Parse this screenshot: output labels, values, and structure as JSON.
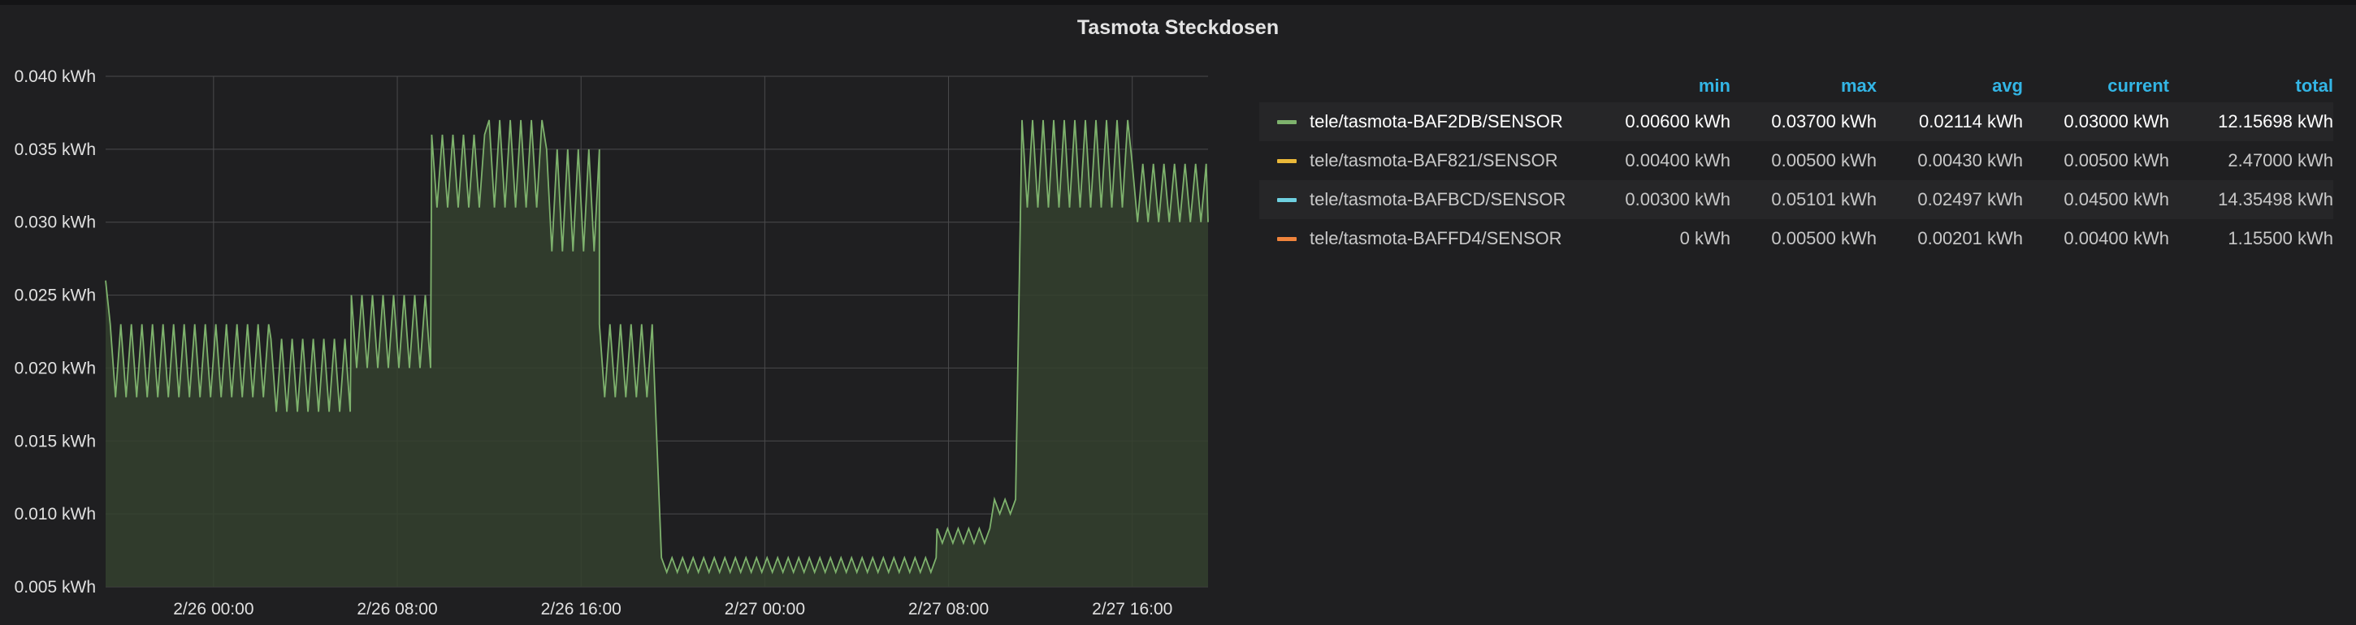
{
  "panel": {
    "title": "Tasmota Steckdosen"
  },
  "colors": {
    "background": "#1f1f21",
    "grid": "#4a4a4c",
    "series_line": "#7eb26d",
    "series_fill": "#34412e",
    "legend_header": "#33b5e5"
  },
  "legend": {
    "columns": [
      "min",
      "max",
      "avg",
      "current",
      "total"
    ],
    "rows": [
      {
        "name": "tele/tasmota-BAF2DB/SENSOR",
        "color": "#7eb26d",
        "min": "0.00600 kWh",
        "max": "0.03700 kWh",
        "avg": "0.02114 kWh",
        "current": "0.03000 kWh",
        "total": "12.15698 kWh"
      },
      {
        "name": "tele/tasmota-BAF821/SENSOR",
        "color": "#eab839",
        "min": "0.00400 kWh",
        "max": "0.00500 kWh",
        "avg": "0.00430 kWh",
        "current": "0.00500 kWh",
        "total": "2.47000 kWh"
      },
      {
        "name": "tele/tasmota-BAFBCD/SENSOR",
        "color": "#6ed0e0",
        "min": "0.00300 kWh",
        "max": "0.05101 kWh",
        "avg": "0.02497 kWh",
        "current": "0.04500 kWh",
        "total": "14.35498 kWh"
      },
      {
        "name": "tele/tasmota-BAFFD4/SENSOR",
        "color": "#ef843c",
        "min": "0 kWh",
        "max": "0.00500 kWh",
        "avg": "0.00201 kWh",
        "current": "0.00400 kWh",
        "total": "1.15500 kWh"
      }
    ]
  },
  "chart_data": {
    "type": "area",
    "title": "Tasmota Steckdosen",
    "xlabel": "",
    "ylabel": "",
    "unit": "kWh",
    "ylim": [
      0.005,
      0.04
    ],
    "xlim_hours": [
      -4.7,
      43.3
    ],
    "yticks": [
      "0.040 kWh",
      "0.035 kWh",
      "0.030 kWh",
      "0.025 kWh",
      "0.020 kWh",
      "0.015 kWh",
      "0.010 kWh",
      "0.005 kWh"
    ],
    "ytick_values": [
      0.04,
      0.035,
      0.03,
      0.025,
      0.02,
      0.015,
      0.01,
      0.005
    ],
    "xticks": [
      "2/26 00:00",
      "2/26 08:00",
      "2/26 16:00",
      "2/27 00:00",
      "2/27 08:00",
      "2/27 16:00"
    ],
    "xtick_hours": [
      0,
      8,
      16,
      24,
      32,
      40
    ],
    "grid": true,
    "series": [
      {
        "name": "tele/tasmota-BAF2DB/SENSOR",
        "segments": [
          {
            "start_h": -4.7,
            "end_h": -4.5,
            "min": 0.018,
            "max": 0.026
          },
          {
            "start_h": -4.5,
            "end_h": 2.5,
            "min": 0.018,
            "max": 0.023
          },
          {
            "start_h": 2.5,
            "end_h": 6.0,
            "min": 0.017,
            "max": 0.022
          },
          {
            "start_h": 6.0,
            "end_h": 9.5,
            "min": 0.02,
            "max": 0.025
          },
          {
            "start_h": 9.5,
            "end_h": 12.0,
            "min": 0.031,
            "max": 0.036
          },
          {
            "start_h": 12.0,
            "end_h": 14.5,
            "min": 0.031,
            "max": 0.037
          },
          {
            "start_h": 14.5,
            "end_h": 16.8,
            "min": 0.028,
            "max": 0.035
          },
          {
            "start_h": 16.8,
            "end_h": 19.2,
            "min": 0.018,
            "max": 0.023
          },
          {
            "start_h": 19.5,
            "end_h": 31.5,
            "min": 0.006,
            "max": 0.007
          },
          {
            "start_h": 31.5,
            "end_h": 34.0,
            "min": 0.008,
            "max": 0.009
          },
          {
            "start_h": 34.0,
            "end_h": 35.0,
            "min": 0.01,
            "max": 0.011
          },
          {
            "start_h": 35.2,
            "end_h": 40.0,
            "min": 0.031,
            "max": 0.037
          },
          {
            "start_h": 40.0,
            "end_h": 43.3,
            "min": 0.03,
            "max": 0.034
          }
        ],
        "last_value": 0.03
      }
    ]
  }
}
